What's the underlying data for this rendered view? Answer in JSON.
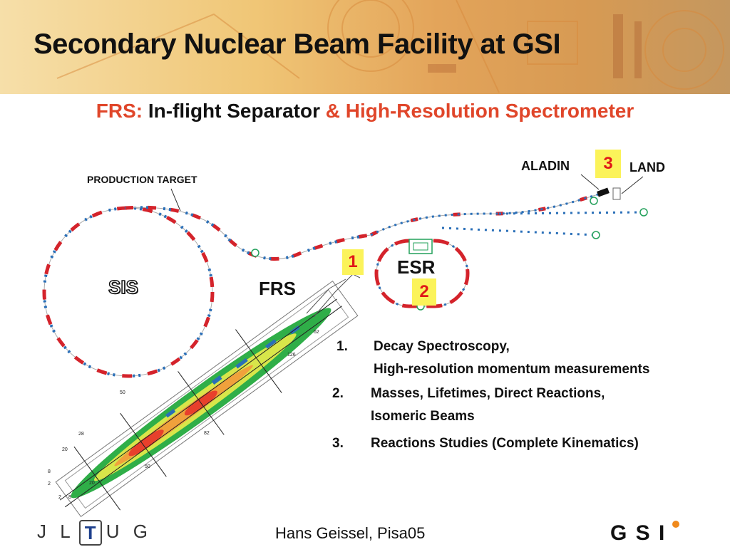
{
  "header": {
    "title": "Secondary Nuclear Beam Facility at GSI"
  },
  "subtitle": {
    "part1": "FRS:",
    "part2": " In-flight Separator ",
    "part3": "& High-Resolution Spectrometer"
  },
  "diagram": {
    "labels": {
      "production_target": "PRODUCTION  TARGET",
      "sis": "SIS",
      "frs": "FRS",
      "esr": "ESR",
      "aladin": "ALADIN",
      "land": "LAND"
    },
    "markers": [
      "1",
      "2",
      "3"
    ],
    "plot_ticks": [
      "62",
      "126",
      "50",
      "82",
      "28",
      "20",
      "50",
      "8",
      "2",
      "2",
      "8",
      "20"
    ]
  },
  "list": [
    {
      "num": "1.",
      "lines": [
        "Decay Spectroscopy,",
        "High-resolution momentum measurements"
      ]
    },
    {
      "num": "2.",
      "lines": [
        "Masses, Lifetimes, Direct Reactions,",
        "Isomeric Beams"
      ]
    },
    {
      "num": "3.",
      "lines": [
        "Reactions Studies (Complete Kinematics)"
      ]
    }
  ],
  "footer": {
    "author": "Hans Geissel,  Pisa05",
    "logo_left": {
      "letters": "J L",
      "mark": "T",
      "letters2": "U G"
    },
    "logo_right": "G S I"
  },
  "colors": {
    "accent_red": "#e0462a",
    "marker_yellow": "#fbf35a",
    "marker_text": "#e01818",
    "magnet_red": "#d4232b",
    "quad_blue": "#2a6fb8",
    "element_green": "#22a05a"
  }
}
